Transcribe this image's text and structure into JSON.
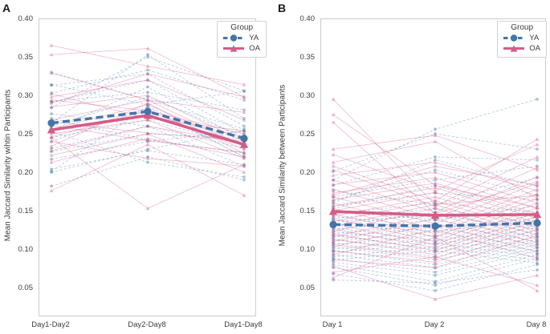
{
  "figure": {
    "background": "#ffffff"
  },
  "style": {
    "ya_color": "#4474a8",
    "oa_color": "#d45c88",
    "spine_color": "#c9ccd1",
    "text_color": "#3d3d3d",
    "legend_border": "#d2d2d2",
    "individual_line_opacity": 0.38,
    "individual_marker_opacity": 0.42
  },
  "legend": {
    "title": "Group",
    "entries": [
      {
        "label": "YA",
        "group": "YA",
        "marker": "circle",
        "line": "dashed"
      },
      {
        "label": "OA",
        "group": "OA",
        "marker": "triangle",
        "line": "solid"
      }
    ]
  },
  "chart_data": [
    {
      "type": "line",
      "panel_label": "A",
      "ylabel": "Mean Jaccard Similarity wihtin Participants",
      "xlabel": "",
      "categories": [
        "Day1-Day2",
        "Day2-Day8",
        "Day1-Day8"
      ],
      "yticks": [
        "0.40",
        "0.35",
        "0.30",
        "0.25",
        "0.20",
        "0.15",
        "0.10",
        "0.05"
      ],
      "ylim": [
        0.015,
        0.4
      ],
      "grid": false,
      "legend_position": "upper right",
      "series": [
        {
          "name": "YA",
          "role": "group-mean",
          "marker": "circle",
          "line": "dashed",
          "values": [
            0.266,
            0.281,
            0.246
          ]
        },
        {
          "name": "OA",
          "role": "group-mean",
          "marker": "triangle",
          "line": "solid",
          "values": [
            0.257,
            0.276,
            0.238
          ]
        }
      ],
      "individuals": {
        "YA": [
          [
            0.315,
            0.33,
            0.262
          ],
          [
            0.294,
            0.306,
            0.283
          ],
          [
            0.286,
            0.352,
            0.308
          ],
          [
            0.272,
            0.244,
            0.227
          ],
          [
            0.305,
            0.335,
            0.296
          ],
          [
            0.332,
            0.296,
            0.258
          ],
          [
            0.242,
            0.286,
            0.222
          ],
          [
            0.229,
            0.252,
            0.246
          ],
          [
            0.219,
            0.242,
            0.256
          ],
          [
            0.206,
            0.23,
            0.212
          ],
          [
            0.184,
            0.222,
            0.192
          ],
          [
            0.203,
            0.288,
            0.222
          ],
          [
            0.256,
            0.313,
            0.244
          ],
          [
            0.266,
            0.355,
            0.272
          ],
          [
            0.293,
            0.322,
            0.252
          ],
          [
            0.255,
            0.215,
            0.196
          ],
          [
            0.247,
            0.27,
            0.237
          ],
          [
            0.262,
            0.3,
            0.248
          ],
          [
            0.316,
            0.29,
            0.307
          ],
          [
            0.233,
            0.262,
            0.21
          ],
          [
            0.278,
            0.262,
            0.233
          ],
          [
            0.202,
            0.232,
            0.256
          ]
        ],
        "OA": [
          [
            0.367,
            0.34,
            0.316
          ],
          [
            0.355,
            0.363,
            0.3
          ],
          [
            0.331,
            0.296,
            0.28
          ],
          [
            0.3,
            0.322,
            0.27
          ],
          [
            0.296,
            0.282,
            0.252
          ],
          [
            0.287,
            0.302,
            0.242
          ],
          [
            0.27,
            0.296,
            0.236
          ],
          [
            0.263,
            0.243,
            0.228
          ],
          [
            0.256,
            0.276,
            0.248
          ],
          [
            0.248,
            0.282,
            0.232
          ],
          [
            0.242,
            0.22,
            0.21
          ],
          [
            0.236,
            0.292,
            0.226
          ],
          [
            0.23,
            0.262,
            0.24
          ],
          [
            0.224,
            0.252,
            0.202
          ],
          [
            0.215,
            0.246,
            0.222
          ],
          [
            0.247,
            0.155,
            0.212
          ],
          [
            0.178,
            0.238,
            0.172
          ],
          [
            0.292,
            0.33,
            0.3
          ],
          [
            0.258,
            0.29,
            0.236
          ],
          [
            0.268,
            0.253,
            0.243
          ],
          [
            0.252,
            0.27,
            0.22
          ],
          [
            0.304,
            0.272,
            0.256
          ]
        ]
      }
    },
    {
      "type": "line",
      "panel_label": "B",
      "ylabel": "Mean Jaccard Similarity between Participants",
      "xlabel": "",
      "categories": [
        "Day 1",
        "Day 2",
        "Day 8"
      ],
      "yticks": [
        "0.40",
        "0.35",
        "0.30",
        "0.25",
        "0.20",
        "0.15",
        "0.10",
        "0.05"
      ],
      "ylim": [
        0.015,
        0.4
      ],
      "grid": false,
      "legend_position": "upper right",
      "series": [
        {
          "name": "YA",
          "role": "group-mean",
          "marker": "circle",
          "line": "dashed",
          "values": [
            0.134,
            0.132,
            0.136
          ]
        },
        {
          "name": "OA",
          "role": "group-mean",
          "marker": "triangle",
          "line": "solid",
          "values": [
            0.151,
            0.146,
            0.147
          ]
        }
      ],
      "individuals": {
        "YA": [
          [
            0.192,
            0.258,
            0.297
          ],
          [
            0.203,
            0.252,
            0.232
          ],
          [
            0.185,
            0.222,
            0.218
          ],
          [
            0.17,
            0.192,
            0.21
          ],
          [
            0.162,
            0.218,
            0.184
          ],
          [
            0.158,
            0.175,
            0.166
          ],
          [
            0.152,
            0.14,
            0.158
          ],
          [
            0.148,
            0.162,
            0.15
          ],
          [
            0.145,
            0.13,
            0.142
          ],
          [
            0.142,
            0.155,
            0.135
          ],
          [
            0.14,
            0.118,
            0.148
          ],
          [
            0.138,
            0.146,
            0.128
          ],
          [
            0.135,
            0.125,
            0.14
          ],
          [
            0.132,
            0.15,
            0.122
          ],
          [
            0.13,
            0.112,
            0.135
          ],
          [
            0.128,
            0.14,
            0.118
          ],
          [
            0.125,
            0.108,
            0.13
          ],
          [
            0.122,
            0.135,
            0.112
          ],
          [
            0.12,
            0.102,
            0.126
          ],
          [
            0.118,
            0.13,
            0.108
          ],
          [
            0.115,
            0.098,
            0.122
          ],
          [
            0.112,
            0.125,
            0.104
          ],
          [
            0.11,
            0.092,
            0.118
          ],
          [
            0.108,
            0.12,
            0.1
          ],
          [
            0.105,
            0.088,
            0.115
          ],
          [
            0.102,
            0.115,
            0.096
          ],
          [
            0.1,
            0.082,
            0.112
          ],
          [
            0.098,
            0.11,
            0.092
          ],
          [
            0.095,
            0.078,
            0.108
          ],
          [
            0.092,
            0.105,
            0.088
          ],
          [
            0.09,
            0.072,
            0.104
          ],
          [
            0.088,
            0.1,
            0.084
          ],
          [
            0.085,
            0.068,
            0.1
          ],
          [
            0.082,
            0.06,
            0.095
          ],
          [
            0.078,
            0.055,
            0.09
          ],
          [
            0.07,
            0.048,
            0.082
          ],
          [
            0.062,
            0.058,
            0.075
          ],
          [
            0.155,
            0.185,
            0.145
          ],
          [
            0.165,
            0.205,
            0.172
          ],
          [
            0.178,
            0.16,
            0.195
          ]
        ],
        "OA": [
          [
            0.297,
            0.16,
            0.172
          ],
          [
            0.277,
            0.185,
            0.156
          ],
          [
            0.267,
            0.148,
            0.19
          ],
          [
            0.232,
            0.25,
            0.205
          ],
          [
            0.225,
            0.178,
            0.238
          ],
          [
            0.215,
            0.242,
            0.168
          ],
          [
            0.205,
            0.158,
            0.222
          ],
          [
            0.198,
            0.215,
            0.178
          ],
          [
            0.192,
            0.15,
            0.208
          ],
          [
            0.186,
            0.202,
            0.162
          ],
          [
            0.18,
            0.142,
            0.196
          ],
          [
            0.175,
            0.195,
            0.155
          ],
          [
            0.17,
            0.135,
            0.188
          ],
          [
            0.166,
            0.188,
            0.148
          ],
          [
            0.162,
            0.128,
            0.18
          ],
          [
            0.158,
            0.182,
            0.142
          ],
          [
            0.155,
            0.122,
            0.174
          ],
          [
            0.152,
            0.176,
            0.136
          ],
          [
            0.148,
            0.118,
            0.168
          ],
          [
            0.145,
            0.17,
            0.13
          ],
          [
            0.142,
            0.112,
            0.162
          ],
          [
            0.138,
            0.165,
            0.125
          ],
          [
            0.135,
            0.108,
            0.156
          ],
          [
            0.132,
            0.16,
            0.12
          ],
          [
            0.128,
            0.104,
            0.15
          ],
          [
            0.125,
            0.155,
            0.115
          ],
          [
            0.122,
            0.1,
            0.145
          ],
          [
            0.118,
            0.148,
            0.11
          ],
          [
            0.115,
            0.095,
            0.14
          ],
          [
            0.112,
            0.142,
            0.105
          ],
          [
            0.108,
            0.09,
            0.135
          ],
          [
            0.105,
            0.135,
            0.098
          ],
          [
            0.1,
            0.085,
            0.128
          ],
          [
            0.095,
            0.128,
            0.09
          ],
          [
            0.088,
            0.078,
            0.12
          ],
          [
            0.08,
            0.037,
            0.068
          ],
          [
            0.072,
            0.092,
            0.055
          ],
          [
            0.065,
            0.118,
            0.048
          ],
          [
            0.172,
            0.21,
            0.185
          ],
          [
            0.21,
            0.165,
            0.245
          ]
        ]
      }
    }
  ]
}
